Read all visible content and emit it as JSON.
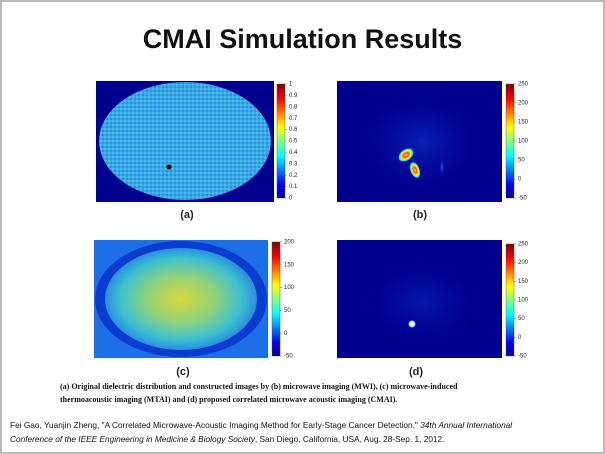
{
  "title": "CMAI Simulation Results",
  "panels": [
    {
      "label": "(a)",
      "colorbar_ticks": [
        "1",
        "0.9",
        "0.8",
        "0.7",
        "0.6",
        "0.5",
        "0.4",
        "0.3",
        "0.2",
        "0.1",
        "0"
      ]
    },
    {
      "label": "(b)",
      "colorbar_ticks": [
        "250",
        "200",
        "150",
        "100",
        "50",
        "0",
        "-50"
      ]
    },
    {
      "label": "(c)",
      "colorbar_ticks": [
        "200",
        "150",
        "100",
        "50",
        "0",
        "-50"
      ]
    },
    {
      "label": "(d)",
      "colorbar_ticks": [
        "250",
        "200",
        "150",
        "100",
        "50",
        "0",
        "-50"
      ]
    }
  ],
  "caption": [
    "(a) Original dielectric distribution and constructed images by (b) microwave imaging (MWI), (c) microwave-induced",
    "thermoacoustic imaging (MTAI) and (d) proposed correlated microwave acoustic imaging (CMAI)."
  ],
  "citation": {
    "authors_title": "Fei Gao, Yuanjin Zheng, \"A Correlated Microwave-Acoustic Imaging Method for Early-Stage Cancer Detection.\"",
    "venue_1": "34th Annual International",
    "venue_2": "Conference of the IEEE Engineering in Medicine & Biology Society",
    "rest": ", San Diego, California, USA, Aug. 28-Sep. 1, 2012."
  }
}
